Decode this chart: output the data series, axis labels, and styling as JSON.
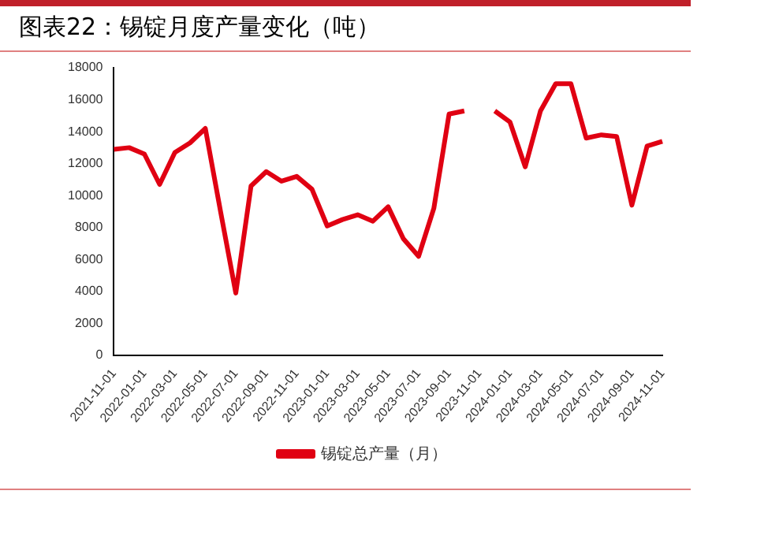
{
  "chart_data": {
    "type": "line",
    "title": "图表22：锡锭月度产量变化（吨）",
    "categories": [
      "2021-11-01",
      null,
      "2022-01-01",
      null,
      "2022-03-01",
      null,
      "2022-05-01",
      null,
      "2022-07-01",
      null,
      "2022-09-01",
      null,
      "2022-11-01",
      null,
      "2023-01-01",
      null,
      "2023-03-01",
      null,
      "2023-05-01",
      null,
      "2023-07-01",
      null,
      "2023-09-01",
      null,
      "2023-11-01",
      null,
      "2024-01-01",
      null,
      "2024-03-01",
      null,
      "2024-05-01",
      null,
      "2024-07-01",
      null,
      "2024-09-01",
      null,
      "2024-11-01"
    ],
    "series": [
      {
        "name": "锡锭总产量（月）",
        "color": "#e00012",
        "values": [
          12900,
          13000,
          12600,
          10700,
          12700,
          13300,
          14200,
          9000,
          3900,
          10600,
          11500,
          10900,
          11200,
          10400,
          8100,
          8500,
          8800,
          8400,
          9300,
          7300,
          6200,
          9200,
          15100,
          15300,
          null,
          15300,
          14600,
          11800,
          15300,
          17000,
          17000,
          13600,
          13800,
          13700,
          9400,
          13100,
          13400
        ]
      }
    ],
    "ylim": [
      0,
      18000
    ],
    "yticks": [
      0,
      2000,
      4000,
      6000,
      8000,
      10000,
      12000,
      14000,
      16000,
      18000
    ],
    "grid": false,
    "legend": "bottom",
    "marker": "none",
    "line_style": "solid"
  }
}
